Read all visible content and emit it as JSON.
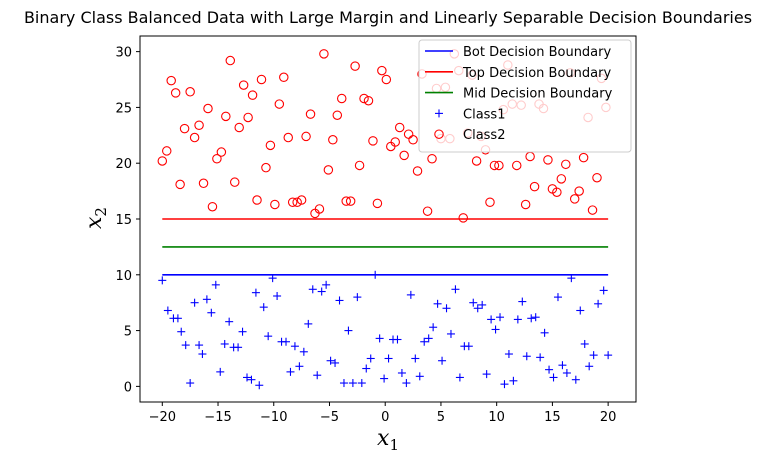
{
  "chart_data": {
    "type": "scatter",
    "title": "Binary Class Balanced Data with Large Margin and Linearly Separable Decision Boundaries",
    "xlabel": {
      "base": "x",
      "sub": "1"
    },
    "ylabel": {
      "base": "x",
      "sub": "2"
    },
    "xlim": [
      -22,
      22.5
    ],
    "ylim": [
      -1.4,
      31.4
    ],
    "xticks": [
      -20,
      -15,
      -10,
      -5,
      0,
      5,
      10,
      15,
      20
    ],
    "yticks": [
      0,
      5,
      10,
      15,
      20,
      25,
      30
    ],
    "grid": false,
    "legend_position": "top-right",
    "lines": [
      {
        "name": "Bot Decision Boundary",
        "color": "#0000ff",
        "x": [
          -20,
          20
        ],
        "y": [
          10,
          10
        ]
      },
      {
        "name": "Top Decision Boundary",
        "color": "#ff0000",
        "x": [
          -20,
          20
        ],
        "y": [
          15,
          15
        ]
      },
      {
        "name": "Mid Decision Boundary",
        "color": "#008000",
        "x": [
          -20,
          20
        ],
        "y": [
          12.5,
          12.5
        ]
      }
    ],
    "series": [
      {
        "name": "Class1",
        "marker": "plus",
        "color": "#0000ff",
        "points": [
          [
            -20.0,
            9.5
          ],
          [
            -19.5,
            6.8
          ],
          [
            -19.0,
            6.1
          ],
          [
            -18.6,
            6.1
          ],
          [
            -18.3,
            4.9
          ],
          [
            -17.9,
            3.7
          ],
          [
            -17.5,
            0.3
          ],
          [
            -17.1,
            7.5
          ],
          [
            -16.7,
            3.7
          ],
          [
            -16.4,
            2.9
          ],
          [
            -16.0,
            7.8
          ],
          [
            -15.6,
            6.6
          ],
          [
            -15.2,
            9.1
          ],
          [
            -14.8,
            1.3
          ],
          [
            -14.4,
            3.8
          ],
          [
            -14.0,
            5.8
          ],
          [
            -13.6,
            3.5
          ],
          [
            -13.2,
            3.5
          ],
          [
            -12.8,
            4.9
          ],
          [
            -12.4,
            0.8
          ],
          [
            -12.0,
            0.6
          ],
          [
            -11.6,
            8.4
          ],
          [
            -11.3,
            0.1
          ],
          [
            -10.9,
            7.1
          ],
          [
            -10.5,
            4.5
          ],
          [
            -10.1,
            9.7
          ],
          [
            -9.7,
            8.1
          ],
          [
            -9.3,
            4.0
          ],
          [
            -8.9,
            4.0
          ],
          [
            -8.5,
            1.3
          ],
          [
            -8.1,
            3.6
          ],
          [
            -7.7,
            1.8
          ],
          [
            -7.3,
            3.1
          ],
          [
            -6.9,
            5.6
          ],
          [
            -6.5,
            8.7
          ],
          [
            -6.1,
            1.0
          ],
          [
            -5.7,
            8.5
          ],
          [
            -5.3,
            9.1
          ],
          [
            -4.9,
            2.3
          ],
          [
            -4.5,
            2.1
          ],
          [
            -4.1,
            7.7
          ],
          [
            -3.7,
            0.3
          ],
          [
            -3.3,
            5.0
          ],
          [
            -2.9,
            0.3
          ],
          [
            -2.5,
            8.0
          ],
          [
            -2.1,
            0.3
          ],
          [
            -1.7,
            1.6
          ],
          [
            -1.3,
            2.5
          ],
          [
            -0.9,
            10.0
          ],
          [
            -0.5,
            4.3
          ],
          [
            -0.1,
            0.7
          ],
          [
            0.3,
            2.5
          ],
          [
            0.7,
            4.2
          ],
          [
            1.1,
            4.2
          ],
          [
            1.5,
            1.2
          ],
          [
            1.9,
            0.3
          ],
          [
            2.3,
            8.2
          ],
          [
            2.7,
            2.5
          ],
          [
            3.1,
            0.9
          ],
          [
            3.5,
            4.0
          ],
          [
            3.9,
            4.3
          ],
          [
            4.3,
            5.3
          ],
          [
            4.7,
            7.4
          ],
          [
            5.1,
            2.3
          ],
          [
            5.5,
            7.0
          ],
          [
            5.9,
            4.7
          ],
          [
            6.3,
            8.7
          ],
          [
            6.7,
            0.8
          ],
          [
            7.1,
            3.6
          ],
          [
            7.5,
            3.6
          ],
          [
            7.9,
            7.5
          ],
          [
            8.3,
            7.0
          ],
          [
            8.7,
            7.3
          ],
          [
            9.1,
            1.1
          ],
          [
            9.5,
            6.0
          ],
          [
            9.9,
            5.1
          ],
          [
            10.3,
            6.2
          ],
          [
            10.7,
            0.2
          ],
          [
            11.1,
            2.9
          ],
          [
            11.5,
            0.5
          ],
          [
            11.9,
            6.0
          ],
          [
            12.3,
            7.6
          ],
          [
            12.7,
            2.7
          ],
          [
            13.1,
            6.1
          ],
          [
            13.5,
            6.2
          ],
          [
            13.9,
            2.6
          ],
          [
            14.3,
            4.8
          ],
          [
            14.7,
            1.5
          ],
          [
            15.1,
            0.8
          ],
          [
            15.5,
            8.0
          ],
          [
            15.9,
            1.9
          ],
          [
            16.3,
            1.2
          ],
          [
            16.7,
            9.7
          ],
          [
            17.1,
            0.6
          ],
          [
            17.5,
            6.8
          ],
          [
            17.9,
            3.8
          ],
          [
            18.3,
            1.8
          ],
          [
            18.7,
            2.8
          ],
          [
            19.1,
            7.4
          ],
          [
            19.6,
            8.6
          ],
          [
            20.0,
            2.8
          ]
        ]
      },
      {
        "name": "Class2",
        "marker": "circle",
        "color": "#ff0000",
        "points": [
          [
            -20.0,
            20.2
          ],
          [
            -19.6,
            21.1
          ],
          [
            -19.2,
            27.4
          ],
          [
            -18.8,
            26.3
          ],
          [
            -18.4,
            18.1
          ],
          [
            -18.0,
            23.1
          ],
          [
            -17.5,
            26.4
          ],
          [
            -17.1,
            22.3
          ],
          [
            -16.7,
            23.4
          ],
          [
            -16.3,
            18.2
          ],
          [
            -15.9,
            24.9
          ],
          [
            -15.5,
            16.1
          ],
          [
            -15.1,
            20.4
          ],
          [
            -14.7,
            21.0
          ],
          [
            -14.3,
            24.2
          ],
          [
            -13.9,
            29.2
          ],
          [
            -13.5,
            18.3
          ],
          [
            -13.1,
            23.2
          ],
          [
            -12.7,
            27.0
          ],
          [
            -12.3,
            24.1
          ],
          [
            -11.9,
            26.1
          ],
          [
            -11.5,
            16.7
          ],
          [
            -11.1,
            27.5
          ],
          [
            -10.7,
            19.6
          ],
          [
            -10.3,
            21.6
          ],
          [
            -9.9,
            16.3
          ],
          [
            -9.5,
            25.3
          ],
          [
            -9.1,
            27.7
          ],
          [
            -8.7,
            22.3
          ],
          [
            -8.3,
            16.5
          ],
          [
            -7.9,
            16.5
          ],
          [
            -7.5,
            16.7
          ],
          [
            -7.1,
            22.4
          ],
          [
            -6.7,
            24.4
          ],
          [
            -6.3,
            15.5
          ],
          [
            -5.9,
            15.9
          ],
          [
            -5.5,
            29.8
          ],
          [
            -5.1,
            19.4
          ],
          [
            -4.7,
            22.1
          ],
          [
            -4.3,
            24.3
          ],
          [
            -3.9,
            25.8
          ],
          [
            -3.5,
            16.6
          ],
          [
            -3.1,
            16.6
          ],
          [
            -2.7,
            28.7
          ],
          [
            -2.3,
            19.8
          ],
          [
            -1.9,
            25.8
          ],
          [
            -1.5,
            25.6
          ],
          [
            -1.1,
            22.0
          ],
          [
            -0.7,
            16.4
          ],
          [
            -0.3,
            28.3
          ],
          [
            0.1,
            27.5
          ],
          [
            0.5,
            21.5
          ],
          [
            0.9,
            21.9
          ],
          [
            1.3,
            23.2
          ],
          [
            1.7,
            20.7
          ],
          [
            2.1,
            22.6
          ],
          [
            2.5,
            22.1
          ],
          [
            2.9,
            19.3
          ],
          [
            3.3,
            28.0
          ],
          [
            3.8,
            15.7
          ],
          [
            4.2,
            20.4
          ],
          [
            4.6,
            26.7
          ],
          [
            5.0,
            22.2
          ],
          [
            5.4,
            26.8
          ],
          [
            5.8,
            22.2
          ],
          [
            6.2,
            29.8
          ],
          [
            6.6,
            28.3
          ],
          [
            7.0,
            15.1
          ],
          [
            7.4,
            22.7
          ],
          [
            7.8,
            27.9
          ],
          [
            8.2,
            20.2
          ],
          [
            8.6,
            22.4
          ],
          [
            9.0,
            21.2
          ],
          [
            9.4,
            16.5
          ],
          [
            9.8,
            19.8
          ],
          [
            10.2,
            19.8
          ],
          [
            10.6,
            24.8
          ],
          [
            11.0,
            28.8
          ],
          [
            11.4,
            25.3
          ],
          [
            11.8,
            19.8
          ],
          [
            12.2,
            25.2
          ],
          [
            12.6,
            16.3
          ],
          [
            13.0,
            20.6
          ],
          [
            13.4,
            17.9
          ],
          [
            13.8,
            25.3
          ],
          [
            14.2,
            24.9
          ],
          [
            14.6,
            20.3
          ],
          [
            15.0,
            17.7
          ],
          [
            15.4,
            17.4
          ],
          [
            15.8,
            18.6
          ],
          [
            16.2,
            19.9
          ],
          [
            16.6,
            28.1
          ],
          [
            17.0,
            16.8
          ],
          [
            17.4,
            17.5
          ],
          [
            17.8,
            20.5
          ],
          [
            18.2,
            24.1
          ],
          [
            18.6,
            15.8
          ],
          [
            19.0,
            18.7
          ],
          [
            19.4,
            27.6
          ],
          [
            19.8,
            25.0
          ]
        ]
      }
    ]
  }
}
